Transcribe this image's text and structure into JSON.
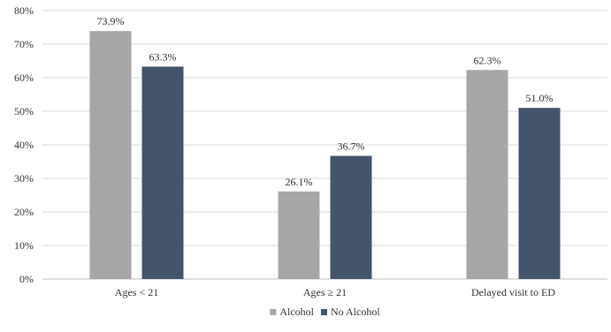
{
  "chart_data": {
    "type": "bar",
    "title": "",
    "xlabel": "",
    "ylabel": "",
    "categories": [
      "Ages < 21",
      "Ages ≥ 21",
      "Delayed visit to ED"
    ],
    "series": [
      {
        "name": "Alcohol",
        "values": [
          73.9,
          26.1,
          62.3
        ],
        "labels": [
          "73.9%",
          "26.1%",
          "62.3%"
        ],
        "color": "#a6a6a6"
      },
      {
        "name": "No Alcohol",
        "values": [
          63.3,
          36.7,
          51.0
        ],
        "labels": [
          "63.3%",
          "36.7%",
          "51.0%"
        ],
        "color": "#44546a"
      }
    ],
    "ylim": [
      0,
      80
    ],
    "yticks": [
      0,
      10,
      20,
      30,
      40,
      50,
      60,
      70,
      80
    ],
    "ytick_labels": [
      "0%",
      "10%",
      "20%",
      "30%",
      "40%",
      "50%",
      "60%",
      "70%",
      "80%"
    ],
    "grid": true,
    "legend_position": "bottom"
  }
}
